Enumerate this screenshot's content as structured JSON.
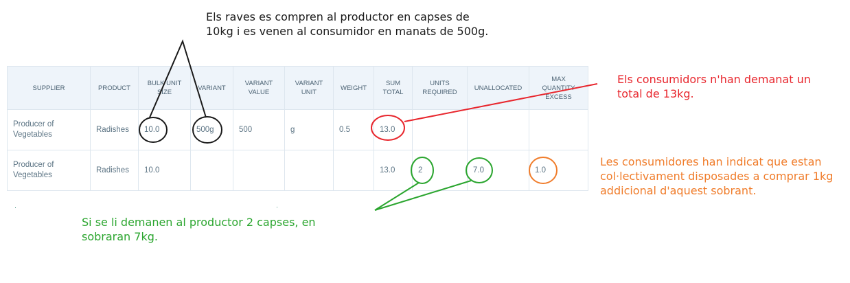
{
  "table": {
    "headers": [
      "SUPPLIER",
      "PRODUCT",
      "BULK UNIT SIZE",
      "VARIANT",
      "VARIANT VALUE",
      "VARIANT UNIT",
      "WEIGHT",
      "SUM TOTAL",
      "UNITS REQUIRED",
      "UNALLOCATED",
      "MAX QUANTITY EXCESS"
    ],
    "rows": [
      [
        "Producer of Vegetables",
        "Radishes",
        "10.0",
        "500g",
        "500",
        "g",
        "0.5",
        "13.0",
        "",
        "",
        ""
      ],
      [
        "Producer of Vegetables",
        "Radishes",
        "10.0",
        "",
        "",
        "",
        "",
        "13.0",
        "2",
        "7.0",
        "1.0"
      ]
    ]
  },
  "annotations": {
    "black_note": "Els raves es compren al productor en capses de 10kg i es venen al consumidor en manats de 500g.",
    "red_note": "Els consumidors n'han demanat un total de 13kg.",
    "green_note": "Si se li demanen al productor 2 capses, en sobraran 7kg.",
    "orange_note": "Les consumidores han indicat que estan col·lectivament disposades a comprar 1kg addicional d'aquest sobrant.",
    "colors": {
      "black": "#1a1a1a",
      "red": "#e8262d",
      "green": "#2aa52e",
      "orange": "#f07c2a"
    }
  }
}
